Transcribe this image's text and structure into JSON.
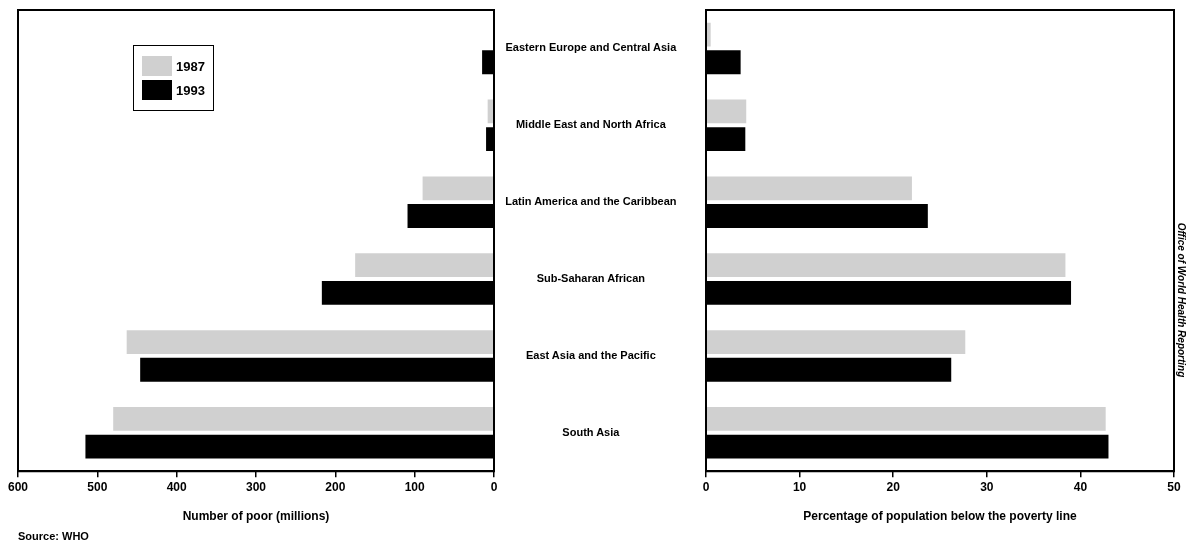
{
  "chart_data": [
    {
      "type": "bar",
      "orientation": "horizontal",
      "categories": [
        "Eastern Europe and Central Asia",
        "Middle East and North Africa",
        "Latin America and the Caribbean",
        "Sub-Saharan African",
        "East Asia and the Pacific",
        "South Asia"
      ],
      "series": [
        {
          "name": "1987",
          "color": "#d0d0d0",
          "values": [
            null,
            8,
            90,
            175,
            463,
            480
          ]
        },
        {
          "name": "1993",
          "color": "#000000",
          "values": [
            15,
            10,
            109,
            217,
            446,
            515
          ]
        }
      ],
      "xlim": [
        600,
        0
      ],
      "xticks": [
        600,
        500,
        400,
        300,
        200,
        100,
        0
      ],
      "xlabel": "Number of poor (millions)",
      "legend": "top left",
      "grid": false,
      "annotations": [
        "Source: WHO"
      ]
    },
    {
      "type": "bar",
      "orientation": "horizontal",
      "categories": [
        null,
        null,
        null,
        null,
        null,
        null
      ],
      "series": [
        {
          "color": "#d0d0d0",
          "values": [
            0.5,
            4.3,
            22,
            38.4,
            27.7,
            42.7
          ]
        },
        {
          "color": "#000000",
          "values": [
            3.7,
            4.2,
            23.7,
            39,
            26.2,
            43
          ]
        }
      ],
      "xlim": [
        0,
        50
      ],
      "xticks": [
        0,
        10,
        20,
        30,
        40,
        50
      ],
      "xlabel": "Percentage of population below the poverty line",
      "legend": false,
      "grid": false,
      "annotations": [
        "Office of World Health Reporting"
      ]
    }
  ]
}
